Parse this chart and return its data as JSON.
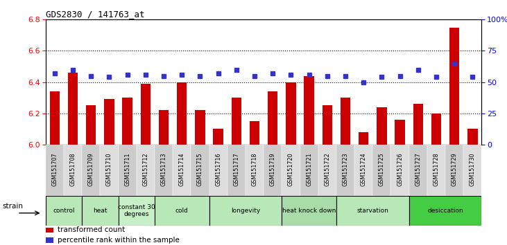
{
  "title": "GDS2830 / 141763_at",
  "gsm_labels": [
    "GSM151707",
    "GSM151708",
    "GSM151709",
    "GSM151710",
    "GSM151711",
    "GSM151712",
    "GSM151713",
    "GSM151714",
    "GSM151715",
    "GSM151716",
    "GSM151717",
    "GSM151718",
    "GSM151719",
    "GSM151720",
    "GSM151721",
    "GSM151722",
    "GSM151723",
    "GSM151724",
    "GSM151725",
    "GSM151726",
    "GSM151727",
    "GSM151728",
    "GSM151729",
    "GSM151730"
  ],
  "bar_values": [
    6.34,
    6.46,
    6.25,
    6.29,
    6.3,
    6.39,
    6.22,
    6.4,
    6.22,
    6.1,
    6.3,
    6.15,
    6.34,
    6.4,
    6.44,
    6.25,
    6.3,
    6.08,
    6.24,
    6.16,
    6.26,
    6.2,
    6.75,
    6.1
  ],
  "percentile_values": [
    57,
    60,
    55,
    54,
    56,
    56,
    55,
    56,
    55,
    57,
    60,
    55,
    57,
    56,
    56,
    55,
    55,
    50,
    54,
    55,
    60,
    54,
    65,
    54
  ],
  "ylim_left": [
    6.0,
    6.8
  ],
  "ylim_right": [
    0,
    100
  ],
  "yticks_left": [
    6.0,
    6.2,
    6.4,
    6.6,
    6.8
  ],
  "yticks_right": [
    0,
    25,
    50,
    75,
    100
  ],
  "bar_color": "#cc0000",
  "dot_color": "#3333cc",
  "bar_width": 0.55,
  "groups": [
    {
      "label": "control",
      "start": 0,
      "end": 2,
      "color": "#b8e8b8"
    },
    {
      "label": "heat",
      "start": 2,
      "end": 4,
      "color": "#b8e8b8"
    },
    {
      "label": "constant 30\ndegrees",
      "start": 4,
      "end": 6,
      "color": "#c8f0c8"
    },
    {
      "label": "cold",
      "start": 6,
      "end": 9,
      "color": "#b8e8b8"
    },
    {
      "label": "longevity",
      "start": 9,
      "end": 13,
      "color": "#b8e8b8"
    },
    {
      "label": "heat knock down",
      "start": 13,
      "end": 16,
      "color": "#a8dca8"
    },
    {
      "label": "starvation",
      "start": 16,
      "end": 20,
      "color": "#b8e8b8"
    },
    {
      "label": "desiccation",
      "start": 20,
      "end": 24,
      "color": "#44cc44"
    }
  ],
  "legend_items": [
    {
      "label": "transformed count",
      "color": "#cc0000"
    },
    {
      "label": "percentile rank within the sample",
      "color": "#3333cc"
    }
  ],
  "strain_label": "strain",
  "background_color": "#ffffff",
  "plot_bg": "#ffffff",
  "gsm_tick_colors": [
    "#cccccc",
    "#dddddd",
    "#cccccc",
    "#dddddd",
    "#cccccc",
    "#dddddd",
    "#cccccc",
    "#dddddd",
    "#cccccc",
    "#dddddd",
    "#cccccc",
    "#dddddd",
    "#cccccc",
    "#dddddd",
    "#cccccc",
    "#dddddd",
    "#cccccc",
    "#dddddd",
    "#cccccc",
    "#dddddd",
    "#cccccc",
    "#dddddd",
    "#cccccc",
    "#dddddd"
  ]
}
